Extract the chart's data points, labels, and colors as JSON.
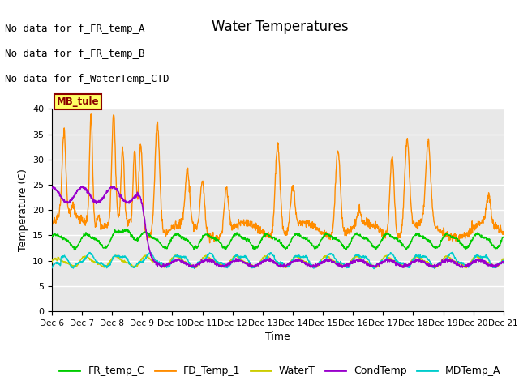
{
  "title": "Water Temperatures",
  "xlabel": "Time",
  "ylabel": "Temperature (C)",
  "ylim": [
    0,
    40
  ],
  "yticks": [
    0,
    5,
    10,
    15,
    20,
    25,
    30,
    35,
    40
  ],
  "xlim_days": [
    6,
    21
  ],
  "xtick_labels": [
    "Dec 6",
    "Dec 7",
    "Dec 8",
    "Dec 9",
    "Dec 10",
    "Dec 11",
    "Dec 12",
    "Dec 13",
    "Dec 14",
    "Dec 15",
    "Dec 16",
    "Dec 17",
    "Dec 18",
    "Dec 19",
    "Dec 20",
    "Dec 21"
  ],
  "colors": {
    "FR_temp_C": "#00CC00",
    "FD_Temp_1": "#FF8C00",
    "WaterT": "#CCCC00",
    "CondTemp": "#9900CC",
    "MDTemp_A": "#00CCCC"
  },
  "annotation_lines": [
    "No data for f_FR_temp_A",
    "No data for f_FR_temp_B",
    "No data for f_WaterTemp_CTD"
  ],
  "mb_tule_label": "MB_tule",
  "background_color": "#E8E8E8",
  "grid_color": "#FFFFFF",
  "title_fontsize": 12,
  "axis_fontsize": 9,
  "tick_fontsize": 8,
  "legend_fontsize": 9,
  "annot_fontsize": 9
}
